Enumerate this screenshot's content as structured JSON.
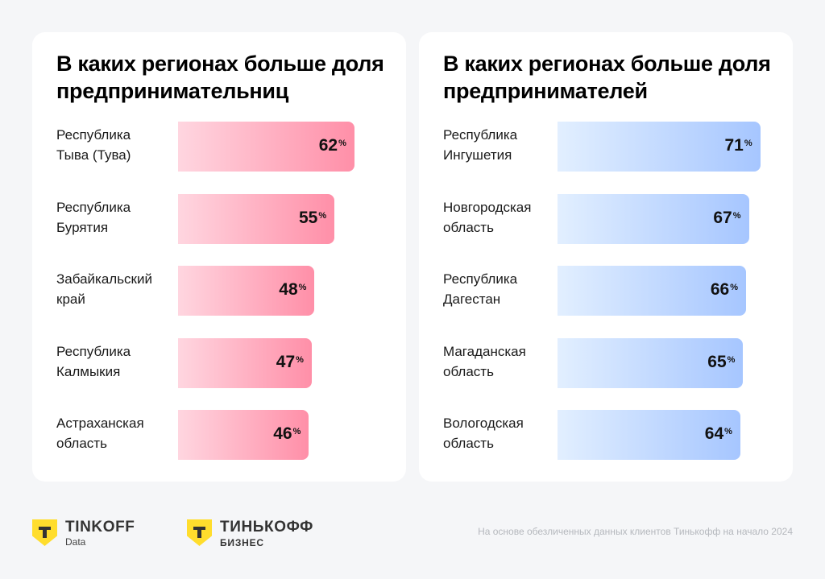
{
  "chart_data": [
    {
      "type": "bar",
      "orientation": "horizontal",
      "title": "В каких регионах больше доля предпринимательниц",
      "categories": [
        "Республика Тыва (Тува)",
        "Республика Бурятия",
        "Забайкальский край",
        "Республика Калмыкия",
        "Астраханская область"
      ],
      "labels": [
        [
          "Республика",
          "Тыва (Тува)"
        ],
        [
          "Республика",
          "Бурятия"
        ],
        [
          "Забайкальский",
          "край"
        ],
        [
          "Республика",
          "Калмыкия"
        ],
        [
          "Астраханская",
          "область"
        ]
      ],
      "values": [
        62,
        55,
        48,
        47,
        46
      ],
      "value_suffix": "%",
      "color_from": "#ffd6e0",
      "color_to": "#ff8fa8",
      "xlim": [
        0,
        100
      ]
    },
    {
      "type": "bar",
      "orientation": "horizontal",
      "title": "В каких регионах больше доля предпринимателей",
      "categories": [
        "Республика Ингушетия",
        "Новгородская область",
        "Республика Дагестан",
        "Магаданская область",
        "Вологодская область"
      ],
      "labels": [
        [
          "Республика",
          "Ингушетия"
        ],
        [
          "Новгородская",
          "область"
        ],
        [
          "Республика",
          "Дагестан"
        ],
        [
          "Магаданская",
          "область"
        ],
        [
          "Вологодская",
          "область"
        ]
      ],
      "values": [
        71,
        67,
        66,
        65,
        64
      ],
      "value_suffix": "%",
      "color_from": "#e2efff",
      "color_to": "#a6c6ff",
      "xlim": [
        0,
        100
      ]
    }
  ],
  "footer": {
    "logo1": {
      "main": "TINKOFF",
      "sub": "Data"
    },
    "logo2": {
      "main": "ТИНЬКОФФ",
      "sub": "БИЗНЕС"
    },
    "logo_color": "#ffdd2d",
    "note": "На основе обезличенных данных клиентов Тинькофф на начало 2024"
  }
}
